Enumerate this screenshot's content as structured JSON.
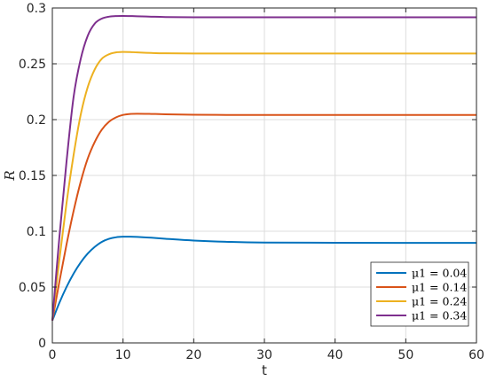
{
  "chart_data": {
    "type": "line",
    "xlabel": "t",
    "ylabel": "R",
    "xlim": [
      0,
      60
    ],
    "ylim": [
      0,
      0.3
    ],
    "xticks": [
      "0",
      "10",
      "20",
      "30",
      "40",
      "50",
      "60"
    ],
    "yticks": [
      "0",
      "0.05",
      "0.1",
      "0.15",
      "0.2",
      "0.25",
      "0.3"
    ],
    "grid": true,
    "legend_position": "bottom-right",
    "x": [
      0,
      1,
      2,
      3,
      4,
      5,
      6,
      7,
      8,
      9,
      10,
      11,
      12,
      14,
      16,
      20,
      25,
      30,
      40,
      50,
      60
    ],
    "series": [
      {
        "name": "μ1 = 0.04",
        "color": "#0072BD",
        "values": [
          0.02,
          0.036,
          0.05,
          0.062,
          0.072,
          0.08,
          0.086,
          0.0905,
          0.0932,
          0.0946,
          0.0951,
          0.0951,
          0.0949,
          0.0942,
          0.0933,
          0.0917,
          0.0905,
          0.0899,
          0.0897,
          0.0896,
          0.0896
        ]
      },
      {
        "name": "μ1 = 0.14",
        "color": "#D95319",
        "values": [
          0.02,
          0.055,
          0.088,
          0.118,
          0.144,
          0.165,
          0.18,
          0.191,
          0.198,
          0.202,
          0.2042,
          0.2051,
          0.2053,
          0.2051,
          0.2048,
          0.2044,
          0.2042,
          0.2042,
          0.2042,
          0.2042,
          0.2042
        ]
      },
      {
        "name": "μ1 = 0.24",
        "color": "#EDB120",
        "values": [
          0.02,
          0.075,
          0.125,
          0.168,
          0.204,
          0.229,
          0.245,
          0.2545,
          0.2585,
          0.2602,
          0.2606,
          0.2605,
          0.2602,
          0.2597,
          0.2594,
          0.2592,
          0.2592,
          0.2592,
          0.2592,
          0.2592,
          0.2592
        ]
      },
      {
        "name": "μ1 = 0.34",
        "color": "#7E2F8E",
        "values": [
          0.02,
          0.095,
          0.162,
          0.22,
          0.254,
          0.275,
          0.286,
          0.2905,
          0.2922,
          0.2928,
          0.2929,
          0.2928,
          0.2926,
          0.2922,
          0.2919,
          0.2917,
          0.2917,
          0.2917,
          0.2917,
          0.2917,
          0.2917
        ]
      }
    ]
  }
}
